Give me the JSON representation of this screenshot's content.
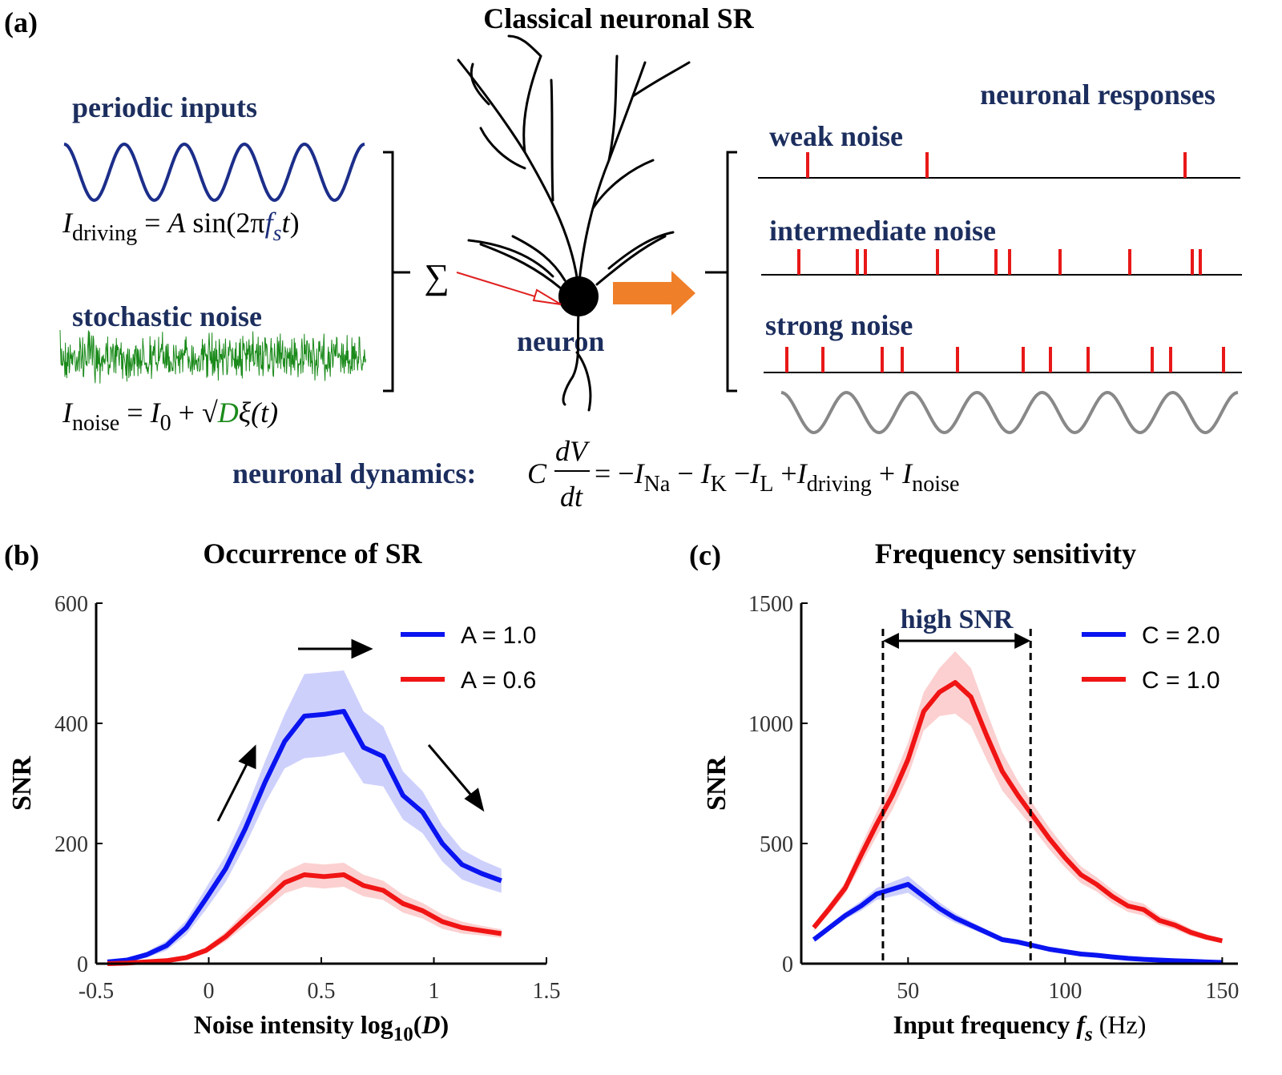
{
  "panel_a": {
    "label": "(a)",
    "title": "Classical neuronal SR",
    "periodic_inputs": "periodic inputs",
    "driving_equation": [
      {
        "text": "I",
        "style": "i"
      },
      {
        "text": "driving",
        "style": "sub"
      },
      {
        "text": " = ",
        "style": "n"
      },
      {
        "text": "A",
        "style": "i"
      },
      {
        "text": " sin(2π",
        "style": "n"
      },
      {
        "text": "f",
        "style": "i",
        "color": "#1c2e7a"
      },
      {
        "text": "s",
        "style": "sub i",
        "color": "#1c2e7a"
      },
      {
        "text": "t",
        "style": "i"
      },
      {
        "text": ")",
        "style": "n"
      }
    ],
    "stochastic_noise": "stochastic noise",
    "noise_equation": [
      {
        "text": "I",
        "style": "i"
      },
      {
        "text": "noise",
        "style": "sub"
      },
      {
        "text": " = ",
        "style": "n"
      },
      {
        "text": "I",
        "style": "i"
      },
      {
        "text": "0",
        "style": "sub"
      },
      {
        "text": " + √",
        "style": "n"
      },
      {
        "text": "D",
        "style": "i",
        "color": "#1a8a1a"
      },
      {
        "text": "ξ(t)",
        "style": "i"
      }
    ],
    "sum_symbol": "∑",
    "neuron": "neuron",
    "neuronal_responses": "neuronal responses",
    "weak_noise": "weak noise",
    "intermediate_noise": "intermediate noise",
    "strong_noise": "strong noise",
    "dynamics_label": "neuronal dynamics:",
    "dynamics_lhs": "C",
    "dynamics_fraction": [
      "dV",
      "dt"
    ],
    "dynamics_equation": [
      {
        "text": " = −",
        "style": "n"
      },
      {
        "text": "I",
        "style": "i"
      },
      {
        "text": "Na",
        "style": "sub"
      },
      {
        "text": " − ",
        "style": "n"
      },
      {
        "text": "I",
        "style": "i"
      },
      {
        "text": "K",
        "style": "sub"
      },
      {
        "text": " −",
        "style": "n"
      },
      {
        "text": "I",
        "style": "i"
      },
      {
        "text": "L",
        "style": "sub"
      },
      {
        "text": " +",
        "style": "n"
      },
      {
        "text": "I",
        "style": "i"
      },
      {
        "text": "driving",
        "style": "sub"
      },
      {
        "text": " + ",
        "style": "n"
      },
      {
        "text": "I",
        "style": "i"
      },
      {
        "text": "noise",
        "style": "sub"
      }
    ]
  },
  "chart_data": [
    {
      "type": "line",
      "label": "(b)",
      "title": "Occurrence of SR",
      "xlabel": [
        {
          "text": "Noise intensity log",
          "style": "b"
        },
        {
          "text": "10",
          "style": "b sub"
        },
        {
          "text": "(",
          "style": "b"
        },
        {
          "text": "D",
          "style": "b i"
        },
        {
          "text": ")",
          "style": "b"
        }
      ],
      "ylabel": "SNR",
      "xlim": [
        -0.5,
        1.5
      ],
      "xticks": [
        -0.5,
        0,
        0.5,
        1,
        1.5
      ],
      "ylim": [
        0,
        600
      ],
      "yticks": [
        0,
        200,
        400,
        600
      ],
      "legend": "upper right",
      "x": [
        -0.45,
        -0.3625,
        -0.275,
        -0.1875,
        -0.1,
        -0.0125,
        0.075,
        0.1625,
        0.25,
        0.3375,
        0.425,
        0.5125,
        0.6,
        0.6875,
        0.775,
        0.8625,
        0.95,
        1.0375,
        1.125,
        1.2125,
        1.3
      ],
      "series": [
        {
          "name": "A = 1.0",
          "color": "#0a14f0",
          "values": [
            3,
            6,
            15,
            30,
            60,
            108,
            158,
            225,
            302,
            370,
            412,
            415,
            420,
            360,
            345,
            280,
            252,
            200,
            165,
            150,
            138
          ],
          "error": [
            2,
            3,
            5,
            8,
            12,
            18,
            22,
            28,
            35,
            45,
            70,
            70,
            68,
            60,
            50,
            40,
            35,
            30,
            25,
            22,
            20
          ]
        },
        {
          "name": "A = 0.6",
          "color": "#f01414",
          "values": [
            0,
            1,
            3,
            5,
            10,
            22,
            45,
            75,
            105,
            135,
            148,
            145,
            148,
            130,
            122,
            100,
            88,
            70,
            60,
            55,
            50
          ],
          "error": [
            0,
            1,
            1,
            2,
            3,
            5,
            8,
            12,
            15,
            18,
            20,
            20,
            20,
            18,
            16,
            15,
            13,
            12,
            10,
            8,
            7
          ]
        }
      ]
    },
    {
      "type": "line",
      "label": "(c)",
      "title": "Frequency sensitivity",
      "xlabel": [
        {
          "text": "Input frequency ",
          "style": "b"
        },
        {
          "text": "f",
          "style": "b i"
        },
        {
          "text": "s",
          "style": "b i sub"
        },
        {
          "text": " (Hz)",
          "style": "n"
        }
      ],
      "ylabel": "SNR",
      "xlim": [
        16,
        155
      ],
      "xticks": [
        50,
        100,
        150
      ],
      "ylim": [
        0,
        1500
      ],
      "yticks": [
        0,
        500,
        1000,
        1500
      ],
      "legend": "upper right",
      "vlines": [
        42,
        89
      ],
      "annotation": "high SNR",
      "x": [
        20,
        25,
        30,
        35,
        40,
        45,
        50,
        55,
        60,
        65,
        70,
        75,
        80,
        85,
        90,
        95,
        100,
        105,
        110,
        115,
        120,
        125,
        130,
        135,
        140,
        145,
        150
      ],
      "series": [
        {
          "name": "C = 2.0",
          "color": "#0a14f0",
          "values": [
            100,
            150,
            200,
            240,
            290,
            310,
            330,
            280,
            230,
            190,
            160,
            130,
            100,
            90,
            75,
            60,
            50,
            40,
            35,
            28,
            22,
            18,
            15,
            12,
            10,
            7,
            5
          ],
          "error": [
            10,
            12,
            15,
            20,
            25,
            30,
            35,
            30,
            25,
            20,
            15,
            12,
            10,
            8,
            7,
            6,
            5,
            4,
            4,
            3,
            3,
            2,
            2,
            2,
            1,
            1,
            1
          ]
        },
        {
          "name": "C = 1.0",
          "color": "#f01414",
          "values": [
            150,
            230,
            315,
            450,
            580,
            700,
            850,
            1050,
            1130,
            1170,
            1110,
            950,
            800,
            700,
            610,
            520,
            440,
            370,
            330,
            280,
            240,
            225,
            180,
            160,
            130,
            110,
            95
          ],
          "error": [
            15,
            20,
            25,
            40,
            50,
            60,
            70,
            80,
            100,
            130,
            120,
            100,
            80,
            60,
            50,
            45,
            40,
            35,
            30,
            28,
            25,
            25,
            20,
            18,
            15,
            12,
            10
          ]
        }
      ]
    }
  ]
}
